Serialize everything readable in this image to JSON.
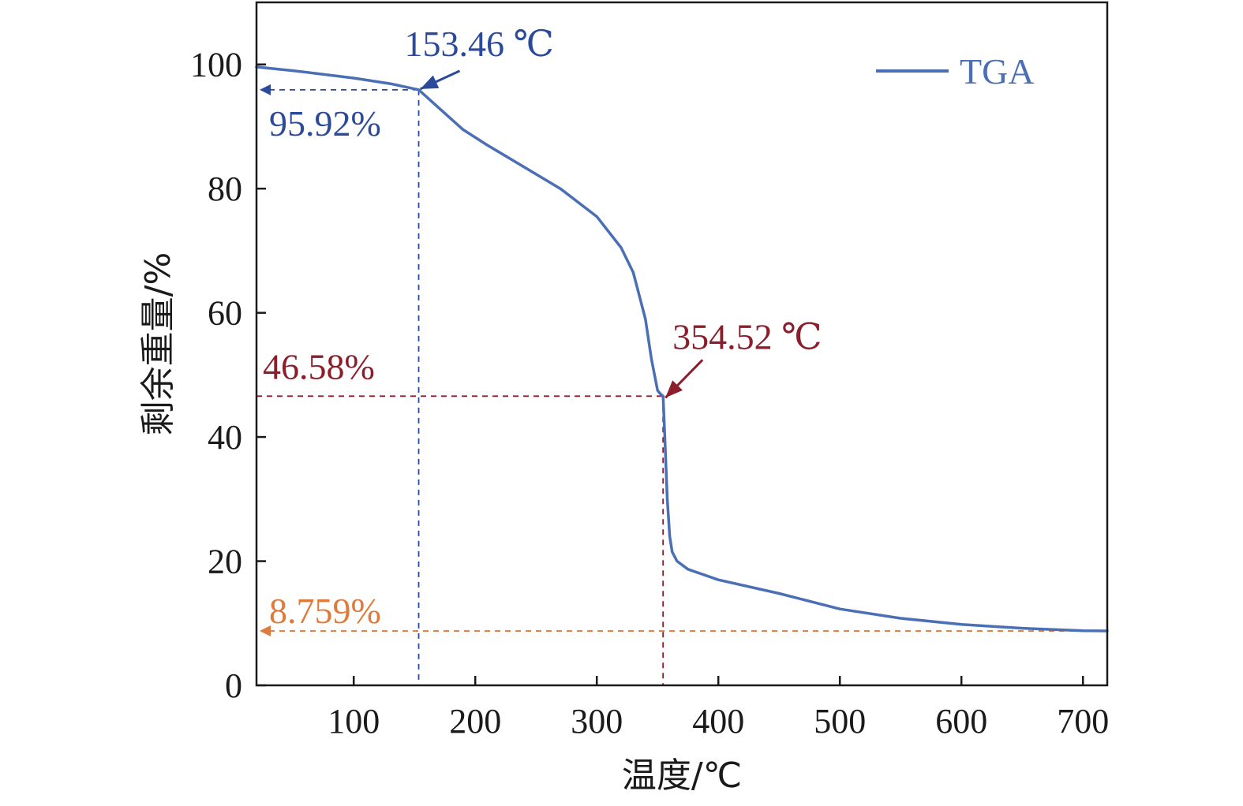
{
  "chart_data": {
    "type": "line",
    "xlabel": "温度/℃",
    "ylabel": "剩余重量/%",
    "xlim": [
      20,
      720
    ],
    "ylim": [
      0,
      110
    ],
    "xticks": [
      100,
      200,
      300,
      400,
      500,
      600,
      700
    ],
    "yticks": [
      0,
      20,
      40,
      60,
      80,
      100
    ],
    "grid": false,
    "legend": {
      "position": "top-right",
      "entries": [
        "TGA"
      ]
    },
    "colors": {
      "series": "#4a6fb5",
      "blue_anno": "#2b4a9a",
      "red_anno": "#8b1e2a",
      "orange_anno": "#e07a3c",
      "axis": "#1a1a1a"
    },
    "series": [
      {
        "name": "TGA",
        "x": [
          20,
          50,
          100,
          130,
          153.46,
          170,
          190,
          210,
          240,
          270,
          300,
          320,
          330,
          340,
          345,
          350,
          352,
          354.52,
          356,
          358,
          360,
          362,
          366,
          375,
          400,
          450,
          500,
          550,
          600,
          650,
          700,
          720
        ],
        "y": [
          99.6,
          99.0,
          97.8,
          96.9,
          95.92,
          93.0,
          89.5,
          87.0,
          83.5,
          80.0,
          75.5,
          70.5,
          66.5,
          59.0,
          52.5,
          47.5,
          47.0,
          46.58,
          40.0,
          30.0,
          24.0,
          21.5,
          20.0,
          18.7,
          17.0,
          14.8,
          12.3,
          10.8,
          9.8,
          9.2,
          8.8,
          8.759
        ]
      }
    ],
    "annotations": [
      {
        "label": "153.46 ℃",
        "x": 153.46,
        "y": 95.92,
        "color": "blue_anno",
        "kind": "temperature"
      },
      {
        "label": "95.92%",
        "y": 95.92,
        "color": "blue_anno",
        "kind": "residual"
      },
      {
        "label": "354.52 ℃",
        "x": 354.52,
        "y": 46.58,
        "color": "red_anno",
        "kind": "temperature"
      },
      {
        "label": "46.58%",
        "y": 46.58,
        "color": "red_anno",
        "kind": "residual"
      },
      {
        "label": "8.759%",
        "y": 8.759,
        "color": "orange_anno",
        "kind": "residual"
      }
    ]
  }
}
